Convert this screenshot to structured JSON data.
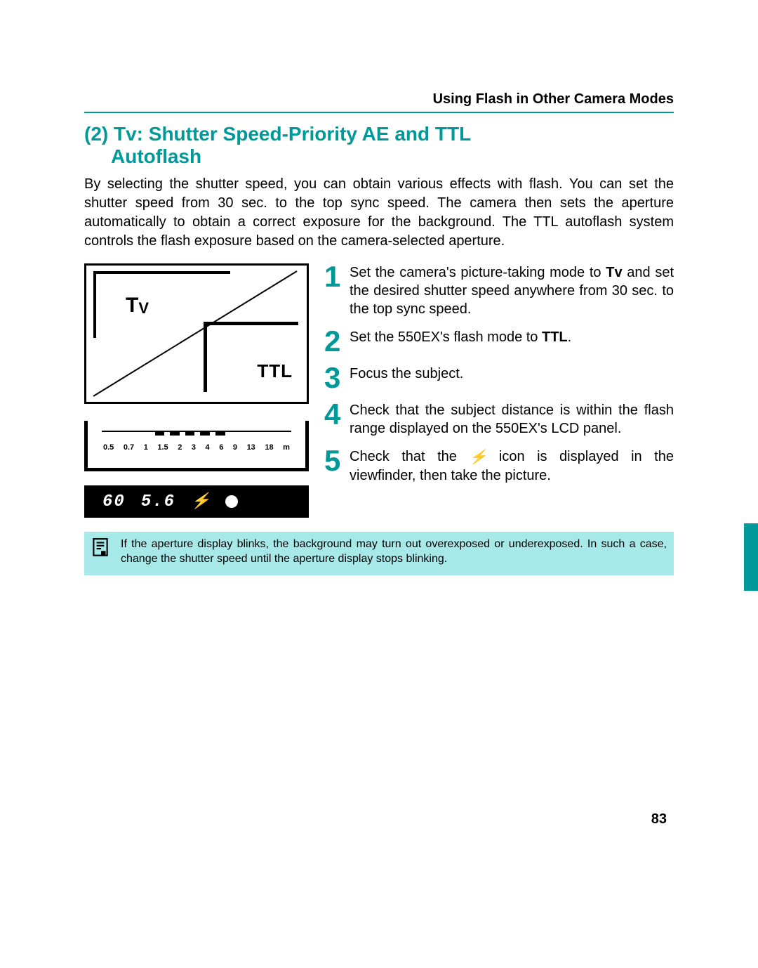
{
  "colors": {
    "accent": "#009999",
    "note_bg": "#a7e8e8",
    "text": "#000000",
    "page_bg": "#ffffff"
  },
  "header": "Using Flash in Other Camera Modes",
  "title_line1": "(2) Tv: Shutter Speed-Priority AE and TTL",
  "title_line2": "Autoflash",
  "intro": "By selecting the shutter speed, you can obtain various effects with flash. You can set the shutter speed from 30 sec. to the top sync speed. The camera then sets the aperture automatically to obtain a correct exposure for the background. The TTL autoflash system controls the flash exposure based on the camera-selected aperture.",
  "lcd": {
    "mode_label": "Tv",
    "flash_label": "TTL"
  },
  "range_scale": {
    "labels": [
      "0.5",
      "0.7",
      "1",
      "1.5",
      "2",
      "3",
      "4",
      "6",
      "9",
      "13",
      "18",
      "m"
    ],
    "dash_positions_pct": [
      28,
      36,
      44,
      52,
      60
    ],
    "dash_width_pct": 5
  },
  "viewfinder": {
    "shutter": "60",
    "aperture": "5.6",
    "flash_ready_icon": "bolt",
    "focus_confirm": true
  },
  "steps": [
    {
      "n": "1",
      "text_pre": "Set the camera's picture-taking mode to ",
      "bold1": "Tv",
      "text_mid": " and set the desired shutter speed anywhere from 30 sec. to the top sync speed.",
      "bold2": "",
      "text_post": ""
    },
    {
      "n": "2",
      "text_pre": "Set the 550EX's flash mode to ",
      "bold1": "TTL",
      "text_mid": ".",
      "bold2": "",
      "text_post": ""
    },
    {
      "n": "3",
      "text_pre": "Focus the subject.",
      "bold1": "",
      "text_mid": "",
      "bold2": "",
      "text_post": ""
    },
    {
      "n": "4",
      "text_pre": "Check that the subject distance is within the flash range displayed on the 550EX's LCD panel.",
      "bold1": "",
      "text_mid": "",
      "bold2": "",
      "text_post": ""
    },
    {
      "n": "5",
      "text_pre": "Check that the ",
      "bold1": "",
      "text_mid": "",
      "icon": "bolt",
      "text_post": " icon is displayed in the viewfinder, then take the picture."
    }
  ],
  "note": "If the aperture display blinks, the background may turn out overexposed or underexposed. In such a case, change the shutter speed until the aperture display stops blinking.",
  "page_number": "83"
}
